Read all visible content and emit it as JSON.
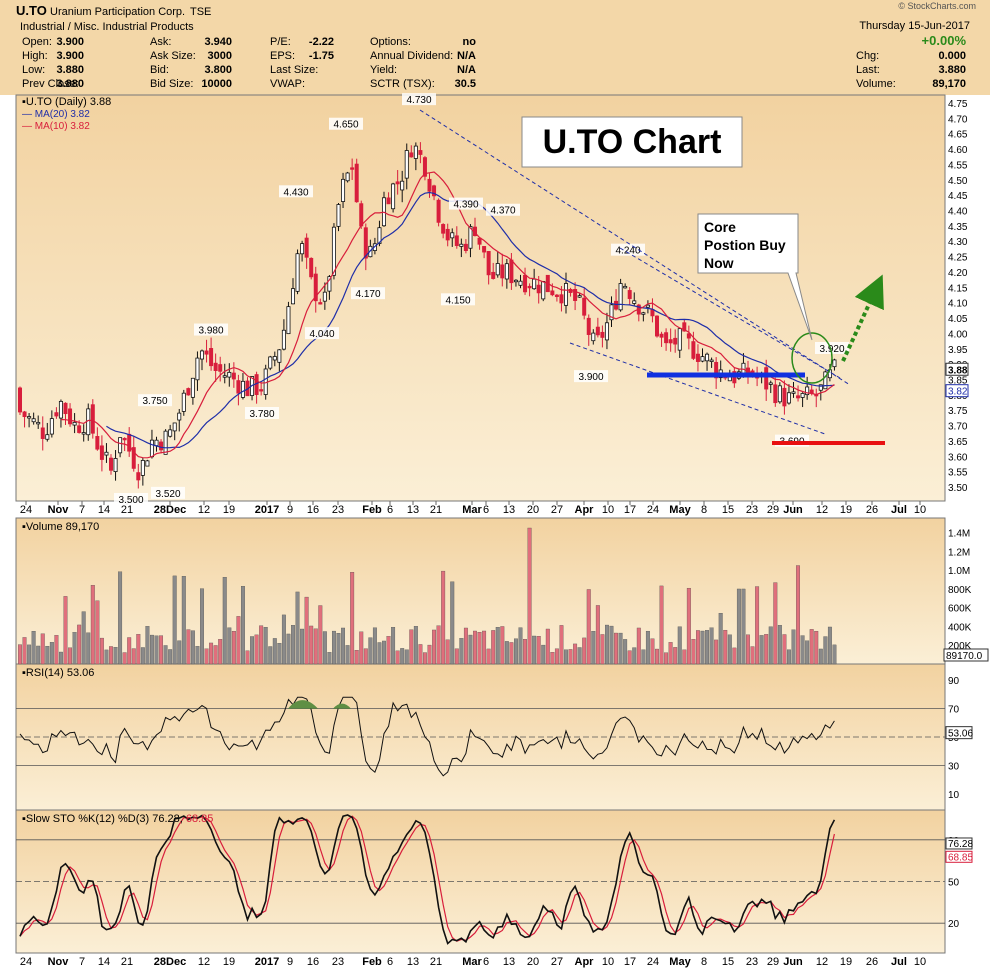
{
  "header": {
    "symbol": "U.TO",
    "company": "Uranium Participation Corp.",
    "exchange": "TSE",
    "sector": "Industrial / Misc. Industrial Products",
    "date": "Thursday  15-Jun-2017",
    "watermark": "© StockCharts.com",
    "stats": [
      {
        "label": "Open:",
        "value": "3.900"
      },
      {
        "label": "High:",
        "value": "3.900"
      },
      {
        "label": "Low:",
        "value": "3.880"
      },
      {
        "label": "Prev Close:",
        "value": "3.880"
      },
      {
        "label": "Ask:",
        "value": "3.940"
      },
      {
        "label": "Ask Size:",
        "value": "3000"
      },
      {
        "label": "Bid:",
        "value": "3.800"
      },
      {
        "label": "Bid Size:",
        "value": "10000"
      },
      {
        "label": "P/E:",
        "value": "-2.22"
      },
      {
        "label": "EPS:",
        "value": "-1.75"
      },
      {
        "label": "Last Size:",
        "value": ""
      },
      {
        "label": "VWAP:",
        "value": ""
      },
      {
        "label": "Options:",
        "value": "no"
      },
      {
        "label": "Annual Dividend:",
        "value": "N/A"
      },
      {
        "label": "Yield:",
        "value": "N/A"
      },
      {
        "label": "SCTR (TSX):",
        "value": "30.5"
      }
    ],
    "change_pct": "+0.00%",
    "right_stats": [
      {
        "label": "Chg:",
        "value": "0.000"
      },
      {
        "label": "Last:",
        "value": "3.880"
      },
      {
        "label": "Volume:",
        "value": "89,170"
      }
    ]
  },
  "annotations": {
    "title_box": "U.TO Chart",
    "callout_lines": [
      "Core",
      "Postion Buy",
      "Now"
    ]
  },
  "colors": {
    "up": "#111111",
    "down": "#d81e3c",
    "ma20": "#1f2ea8",
    "ma10": "#d81e3c",
    "vol_down": "#e06f7c",
    "vol_up": "#8a8a8a",
    "support": "#1030e0",
    "stop": "#e81010",
    "arrow": "#2a8a1a",
    "trend": "#1f2ea8",
    "osc_fill": "#5f8f44"
  },
  "chart_data": [
    {
      "type": "candlestick",
      "legend": [
        "U.TO (Daily) 3.88",
        "MA(20) 3.82",
        "MA(10) 3.82"
      ],
      "x_ticks": [
        "24",
        "Nov",
        "7",
        "14",
        "21",
        "28Dec",
        "12",
        "19",
        "2017",
        "9",
        "16",
        "23",
        "Feb",
        "6",
        "13",
        "21",
        "Mar",
        "6",
        "13",
        "20",
        "27",
        "Apr",
        "10",
        "17",
        "24",
        "May",
        "8",
        "15",
        "23",
        "29",
        "Jun",
        "12",
        "19",
        "26",
        "Jul",
        "10"
      ],
      "y_ticks": [
        "4.75",
        "4.70",
        "4.65",
        "4.60",
        "4.55",
        "4.50",
        "4.45",
        "4.40",
        "4.35",
        "4.30",
        "4.25",
        "4.20",
        "4.15",
        "4.10",
        "4.05",
        "4.00",
        "3.95",
        "3.90",
        "3.85",
        "3.80",
        "3.75",
        "3.70",
        "3.65",
        "3.60",
        "3.55",
        "3.50"
      ],
      "ylim": [
        3.46,
        4.77
      ],
      "labeled_points": [
        {
          "date": "2016-11-23",
          "value": "3.500"
        },
        {
          "date": "2016-11-28",
          "value": "3.750"
        },
        {
          "date": "2016-12-08",
          "value": "3.520"
        },
        {
          "date": "2016-12-14",
          "value": "3.980"
        },
        {
          "date": "2016-12-30",
          "value": "3.780"
        },
        {
          "date": "2017-01-10",
          "value": "4.430"
        },
        {
          "date": "2017-01-13",
          "value": "4.040"
        },
        {
          "date": "2017-01-24",
          "value": "4.650"
        },
        {
          "date": "2017-02-03",
          "value": "4.170"
        },
        {
          "date": "2017-02-14",
          "value": "4.730"
        },
        {
          "date": "2017-02-24",
          "value": "4.390"
        },
        {
          "date": "2017-02-24",
          "value": "4.150"
        },
        {
          "date": "2017-03-06",
          "value": "4.370"
        },
        {
          "date": "2017-04-03",
          "value": "3.900"
        },
        {
          "date": "2017-04-13",
          "value": "4.240"
        },
        {
          "date": "2017-06-02",
          "value": "3.690"
        },
        {
          "date": "2017-06-12",
          "value": "3.920"
        }
      ],
      "last_price": "3.88",
      "ma_value": "3.82"
    },
    {
      "type": "bar",
      "legend": "Volume 89,170",
      "y_ticks": [
        "1.4M",
        "1.2M",
        "1.0M",
        "800K",
        "600K",
        "400K",
        "200K"
      ],
      "last_label": "89170.0"
    },
    {
      "type": "line",
      "legend": "RSI(14) 53.06",
      "y_ticks": [
        "90",
        "70",
        "50",
        "30",
        "10"
      ],
      "ylim": [
        0,
        100
      ],
      "last_label": "53.06"
    },
    {
      "type": "line",
      "legend_parts": [
        "Slow STO %K(12) %D(3) 76.28,",
        "68.85"
      ],
      "y_ticks": [
        "80",
        "50",
        "20"
      ],
      "ylim": [
        0,
        100
      ],
      "k_last": "76.28",
      "d_last": "68.85"
    }
  ]
}
